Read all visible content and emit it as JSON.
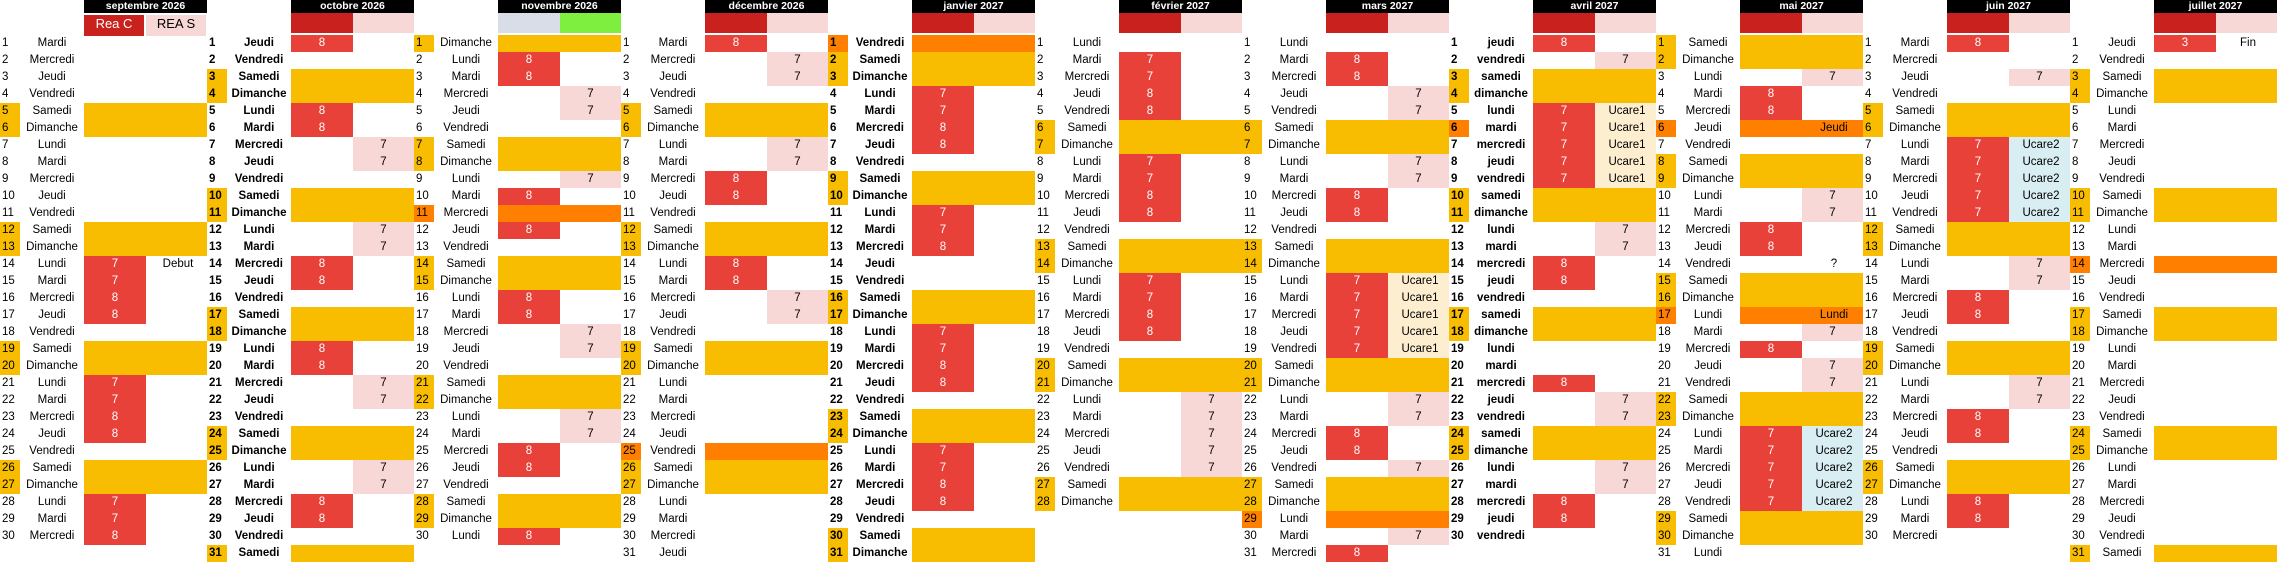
{
  "colors": {
    "weekend": "#f8bc00",
    "holiday": "#ff8000",
    "holiday_light": "#ffcc66",
    "C": "#e8413a",
    "S": "#f8d7d7",
    "ucare1": "#fdeed0",
    "ucare2": "#d9eef2",
    "hdr_dark": "#c9211e",
    "hdr_light": "#f8d7d7",
    "hdr_gray": "#d9dde8",
    "hdr_green": "#7fef3f"
  },
  "legend": {
    "c": "Rea C",
    "s": "REA S"
  },
  "months": [
    {
      "name": "septembre 2026",
      "bold": false,
      "days": [
        "Mardi",
        "Mercredi",
        "Jeudi",
        "Vendredi",
        "Samedi",
        "Dimanche",
        "Lundi",
        "Mardi",
        "Mercredi",
        "Jeudi",
        "Vendredi",
        "Samedi",
        "Dimanche",
        "Lundi",
        "Mardi",
        "Mercredi",
        "Jeudi",
        "Vendredi",
        "Samedi",
        "Dimanche",
        "Lundi",
        "Mardi",
        "Mercredi",
        "Jeudi",
        "Vendredi",
        "Samedi",
        "Dimanche",
        "Lundi",
        "Mardi",
        "Mercredi"
      ],
      "special": {
        "5": "weekend",
        "6": "weekend",
        "12": "weekend",
        "13": "weekend",
        "19": "weekend",
        "20": "weekend",
        "26": "weekend",
        "27": "weekend"
      },
      "c": {
        "14": "7",
        "15": "7",
        "16": "8",
        "17": "8",
        "21": "7",
        "22": "7",
        "23": "8",
        "24": "8",
        "28": "7",
        "29": "7",
        "30": "8"
      },
      "s": {},
      "ann": {
        "14": "Debut"
      }
    },
    {
      "name": "octobre 2026",
      "bold": true,
      "days": [
        "Jeudi",
        "Vendredi",
        "Samedi",
        "Dimanche",
        "Lundi",
        "Mardi",
        "Mercredi",
        "Jeudi",
        "Vendredi",
        "Samedi",
        "Dimanche",
        "Lundi",
        "Mardi",
        "Mercredi",
        "Jeudi",
        "Vendredi",
        "Samedi",
        "Dimanche",
        "Lundi",
        "Mardi",
        "Mercredi",
        "Jeudi",
        "Vendredi",
        "Samedi",
        "Dimanche",
        "Lundi",
        "Mardi",
        "Mercredi",
        "Jeudi",
        "Vendredi",
        "Samedi"
      ],
      "special": {
        "3": "weekend",
        "4": "weekend",
        "10": "weekend",
        "11": "weekend",
        "17": "weekend",
        "18": "weekend",
        "24": "weekend",
        "25": "weekend",
        "31": "weekend"
      },
      "c": {
        "1": "8",
        "5": "8",
        "6": "8",
        "14": "8",
        "15": "8",
        "19": "8",
        "20": "8",
        "28": "8",
        "29": "8"
      },
      "s": {
        "7": "7",
        "8": "7",
        "12": "7",
        "13": "7",
        "21": "7",
        "22": "7",
        "26": "7",
        "27": "7"
      },
      "ann": {}
    },
    {
      "name": "novembre 2026",
      "bold": false,
      "days": [
        "Dimanche",
        "Lundi",
        "Mardi",
        "Mercredi",
        "Jeudi",
        "Vendredi",
        "Samedi",
        "Dimanche",
        "Lundi",
        "Mardi",
        "Mercredi",
        "Jeudi",
        "Vendredi",
        "Samedi",
        "Dimanche",
        "Lundi",
        "Mardi",
        "Mercredi",
        "Jeudi",
        "Vendredi",
        "Samedi",
        "Dimanche",
        "Lundi",
        "Mardi",
        "Mercredi",
        "Jeudi",
        "Vendredi",
        "Samedi",
        "Dimanche",
        "Lundi"
      ],
      "special": {
        "1": "weekend",
        "7": "weekend",
        "8": "weekend",
        "11": "holiday",
        "14": "weekend",
        "15": "weekend",
        "21": "weekend",
        "22": "weekend",
        "28": "weekend",
        "29": "weekend"
      },
      "c": {
        "2": "8",
        "3": "8",
        "10": "8",
        "12": "8",
        "16": "8",
        "17": "8",
        "25": "8",
        "26": "8",
        "30": "8"
      },
      "s": {
        "4": "7",
        "5": "7",
        "9": "7",
        "18": "7",
        "19": "7",
        "23": "7",
        "24": "7"
      },
      "ann": {}
    },
    {
      "name": "décembre 2026",
      "bold": false,
      "days": [
        "Mardi",
        "Mercredi",
        "Jeudi",
        "Vendredi",
        "Samedi",
        "Dimanche",
        "Lundi",
        "Mardi",
        "Mercredi",
        "Jeudi",
        "Vendredi",
        "Samedi",
        "Dimanche",
        "Lundi",
        "Mardi",
        "Mercredi",
        "Jeudi",
        "Vendredi",
        "Samedi",
        "Dimanche",
        "Lundi",
        "Mardi",
        "Mercredi",
        "Jeudi",
        "Vendredi",
        "Samedi",
        "Dimanche",
        "Lundi",
        "Mardi",
        "Mercredi",
        "Jeudi"
      ],
      "special": {
        "5": "weekend",
        "6": "weekend",
        "12": "weekend",
        "13": "weekend",
        "19": "weekend",
        "20": "weekend",
        "25": "holiday",
        "26": "weekend",
        "27": "weekend"
      },
      "c": {
        "1": "8",
        "9": "8",
        "10": "8",
        "14": "8",
        "15": "8"
      },
      "s": {
        "2": "7",
        "3": "7",
        "7": "7",
        "8": "7",
        "16": "7",
        "17": "7"
      },
      "ann": {}
    },
    {
      "name": "janvier 2027",
      "bold": true,
      "days": [
        "Vendredi",
        "Samedi",
        "Dimanche",
        "Lundi",
        "Mardi",
        "Mercredi",
        "Jeudi",
        "Vendredi",
        "Samedi",
        "Dimanche",
        "Lundi",
        "Mardi",
        "Mercredi",
        "Jeudi",
        "Vendredi",
        "Samedi",
        "Dimanche",
        "Lundi",
        "Mardi",
        "Mercredi",
        "Jeudi",
        "Vendredi",
        "Samedi",
        "Dimanche",
        "Lundi",
        "Mardi",
        "Mercredi",
        "Jeudi",
        "Vendredi",
        "Samedi",
        "Dimanche"
      ],
      "special": {
        "1": "holiday",
        "2": "weekend",
        "3": "weekend",
        "9": "weekend",
        "10": "weekend",
        "16": "weekend",
        "17": "weekend",
        "23": "weekend",
        "24": "weekend",
        "30": "weekend",
        "31": "weekend"
      },
      "c": {
        "4": "7",
        "5": "7",
        "6": "8",
        "7": "8",
        "11": "7",
        "12": "7",
        "13": "8",
        "18": "7",
        "19": "7",
        "20": "8",
        "21": "8",
        "25": "7",
        "26": "7",
        "27": "8",
        "28": "8"
      },
      "s": {},
      "ann": {}
    },
    {
      "name": "février 2027",
      "bold": false,
      "days": [
        "Lundi",
        "Mardi",
        "Mercredi",
        "Jeudi",
        "Vendredi",
        "Samedi",
        "Dimanche",
        "Lundi",
        "Mardi",
        "Mercredi",
        "Jeudi",
        "Vendredi",
        "Samedi",
        "Dimanche",
        "Lundi",
        "Mardi",
        "Mercredi",
        "Jeudi",
        "Vendredi",
        "Samedi",
        "Dimanche",
        "Lundi",
        "Mardi",
        "Mercredi",
        "Jeudi",
        "Vendredi",
        "Samedi",
        "Dimanche"
      ],
      "special": {
        "6": "weekend",
        "7": "weekend",
        "13": "weekend",
        "14": "weekend",
        "20": "weekend",
        "21": "weekend",
        "27": "weekend",
        "28": "weekend"
      },
      "c": {
        "2": "7",
        "3": "7",
        "4": "8",
        "5": "8",
        "8": "7",
        "9": "7",
        "10": "8",
        "11": "8",
        "15": "7",
        "16": "7",
        "17": "8",
        "18": "8"
      },
      "s": {
        "22": "7",
        "23": "7",
        "24": "7",
        "25": "7",
        "26": "7"
      },
      "ann": {}
    },
    {
      "name": "mars 2027",
      "bold": false,
      "days": [
        "Lundi",
        "Mardi",
        "Mercredi",
        "Jeudi",
        "Vendredi",
        "Samedi",
        "Dimanche",
        "Lundi",
        "Mardi",
        "Mercredi",
        "Jeudi",
        "Vendredi",
        "Samedi",
        "Dimanche",
        "Lundi",
        "Mardi",
        "Mercredi",
        "Jeudi",
        "Vendredi",
        "Samedi",
        "Dimanche",
        "Lundi",
        "Mardi",
        "Mercredi",
        "Jeudi",
        "Vendredi",
        "Samedi",
        "Dimanche",
        "Lundi",
        "Mardi",
        "Mercredi"
      ],
      "special": {
        "6": "weekend",
        "7": "weekend",
        "13": "weekend",
        "14": "weekend",
        "20": "weekend",
        "21": "weekend",
        "27": "weekend",
        "28": "weekend",
        "29": "holiday"
      },
      "c": {
        "2": "8",
        "3": "8",
        "10": "8",
        "11": "8",
        "15": "7",
        "16": "7",
        "17": "7",
        "18": "7",
        "19": "7",
        "24": "8",
        "25": "8",
        "31": "8"
      },
      "s": {
        "4": "7",
        "5": "7",
        "8": "7",
        "9": "7",
        "22": "7",
        "23": "7",
        "26": "7",
        "30": "7"
      },
      "ann": {
        "15": "Ucare1",
        "16": "Ucare1",
        "17": "Ucare1",
        "18": "Ucare1",
        "19": "Ucare1"
      }
    },
    {
      "name": "avril 2027",
      "bold": true,
      "days": [
        "jeudi",
        "vendredi",
        "samedi",
        "dimanche",
        "lundi",
        "mardi",
        "mercredi",
        "jeudi",
        "vendredi",
        "samedi",
        "dimanche",
        "lundi",
        "mardi",
        "mercredi",
        "jeudi",
        "vendredi",
        "samedi",
        "dimanche",
        "lundi",
        "mardi",
        "mercredi",
        "jeudi",
        "vendredi",
        "samedi",
        "dimanche",
        "lundi",
        "mardi",
        "mercredi",
        "jeudi",
        "vendredi"
      ],
      "special": {
        "3": "weekend",
        "4": "weekend",
        "6": "holiday",
        "10": "weekend",
        "11": "weekend",
        "17": "weekend",
        "18": "weekend",
        "24": "weekend",
        "25": "weekend"
      },
      "c": {
        "1": "8",
        "5": "7",
        "6": "7",
        "7": "7",
        "8": "7",
        "9": "7",
        "14": "8",
        "15": "8",
        "21": "8",
        "28": "8",
        "29": "8"
      },
      "s": {
        "2": "7",
        "12": "7",
        "13": "7",
        "22": "7",
        "23": "7",
        "26": "7",
        "27": "7"
      },
      "ann": {
        "5": "Ucare1",
        "6": "Ucare1",
        "7": "Ucare1",
        "8": "Ucare1",
        "9": "Ucare1"
      }
    },
    {
      "name": "mai 2027",
      "bold": false,
      "days": [
        "Samedi",
        "Dimanche",
        "Lundi",
        "Mardi",
        "Mercredi",
        "Jeudi",
        "Vendredi",
        "Samedi",
        "Dimanche",
        "Lundi",
        "Mardi",
        "Mercredi",
        "Jeudi",
        "Vendredi",
        "Samedi",
        "Dimanche",
        "Lundi",
        "Mardi",
        "Mercredi",
        "Jeudi",
        "Vendredi",
        "Samedi",
        "Dimanche",
        "Lundi",
        "Mardi",
        "Mercredi",
        "Jeudi",
        "Vendredi",
        "Samedi",
        "Dimanche",
        "Lundi"
      ],
      "special": {
        "1": "weekend",
        "2": "weekend",
        "6": "holiday",
        "8": "weekend",
        "9": "weekend",
        "15": "weekend",
        "16": "weekend",
        "17": "holiday",
        "22": "weekend",
        "23": "weekend",
        "29": "weekend",
        "30": "weekend"
      },
      "c": {
        "4": "8",
        "5": "8",
        "12": "8",
        "13": "8",
        "19": "8",
        "24": "7",
        "25": "7",
        "26": "7",
        "27": "7",
        "28": "7"
      },
      "s": {
        "3": "7",
        "10": "7",
        "11": "7",
        "18": "7",
        "20": "7",
        "21": "7"
      },
      "ann": {
        "6": "Jeudi",
        "14": "?",
        "17": "Lundi",
        "24": "Ucare2",
        "25": "Ucare2",
        "26": "Ucare2",
        "27": "Ucare2",
        "28": "Ucare2"
      }
    },
    {
      "name": "juin 2027",
      "bold": false,
      "days": [
        "Mardi",
        "Mercredi",
        "Jeudi",
        "Vendredi",
        "Samedi",
        "Dimanche",
        "Lundi",
        "Mardi",
        "Mercredi",
        "Jeudi",
        "Vendredi",
        "Samedi",
        "Dimanche",
        "Lundi",
        "Mardi",
        "Mercredi",
        "Jeudi",
        "Vendredi",
        "Samedi",
        "Dimanche",
        "Lundi",
        "Mardi",
        "Mercredi",
        "Jeudi",
        "Vendredi",
        "Samedi",
        "Dimanche",
        "Lundi",
        "Mardi",
        "Mercredi"
      ],
      "special": {
        "5": "weekend",
        "6": "weekend",
        "12": "weekend",
        "13": "weekend",
        "19": "weekend",
        "20": "weekend",
        "26": "weekend",
        "27": "weekend"
      },
      "c": {
        "1": "8",
        "7": "7",
        "8": "7",
        "9": "7",
        "10": "7",
        "11": "7",
        "16": "8",
        "17": "8",
        "23": "8",
        "24": "8",
        "28": "8",
        "29": "8"
      },
      "s": {
        "3": "7",
        "14": "7",
        "15": "7",
        "21": "7",
        "22": "7"
      },
      "ann": {
        "7": "Ucare2",
        "8": "Ucare2",
        "9": "Ucare2",
        "10": "Ucare2",
        "11": "Ucare2"
      }
    },
    {
      "name": "juillet 2027",
      "bold": false,
      "days": [
        "Jeudi",
        "Vendredi",
        "Samedi",
        "Dimanche",
        "Lundi",
        "Mardi",
        "Mercredi",
        "Jeudi",
        "Vendredi",
        "Samedi",
        "Dimanche",
        "Lundi",
        "Mardi",
        "Mercredi",
        "Jeudi",
        "Vendredi",
        "Samedi",
        "Dimanche",
        "Lundi",
        "Mardi",
        "Mercredi",
        "Jeudi",
        "Vendredi",
        "Samedi",
        "Dimanche",
        "Lundi",
        "Mardi",
        "Mercredi",
        "Jeudi",
        "Vendredi",
        "Samedi"
      ],
      "special": {
        "3": "weekend",
        "4": "weekend",
        "10": "weekend",
        "11": "weekend",
        "14": "holiday",
        "17": "weekend",
        "18": "weekend",
        "24": "weekend",
        "25": "weekend",
        "31": "weekend"
      },
      "c": {
        "1": "3"
      },
      "s": {},
      "ann": {
        "1": "Fin"
      }
    }
  ]
}
